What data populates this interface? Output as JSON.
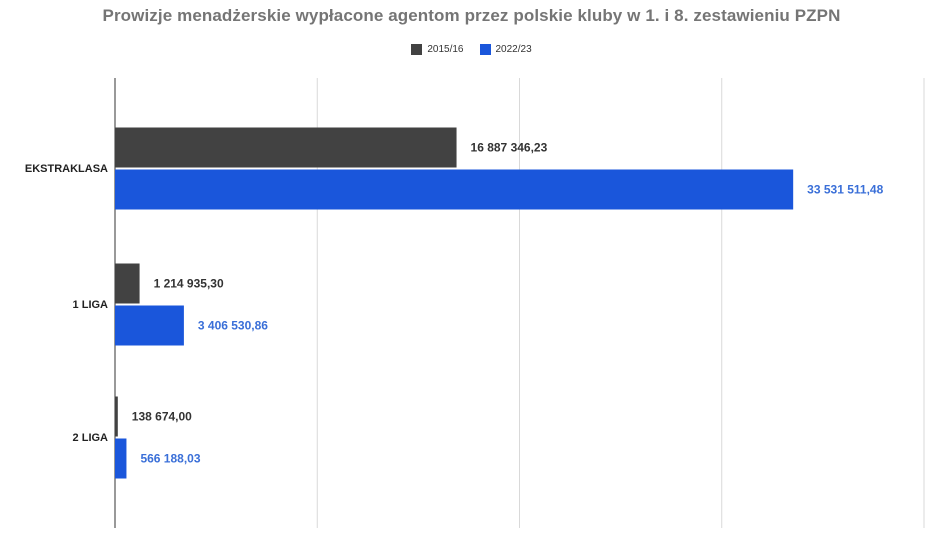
{
  "chart_data": {
    "type": "bar",
    "orientation": "horizontal",
    "title": "Prowizje menadżerskie wypłacone agentom przez polskie kluby w 1. i 8. zestawieniu PZPN",
    "categories": [
      "EKSTRAKLASA",
      "1 LIGA",
      "2 LIGA"
    ],
    "series": [
      {
        "name": "2015/16",
        "color": "#424242",
        "values": [
          16887346.23,
          1214935.3,
          138674.0
        ],
        "labels": [
          "16 887 346,23",
          "1 214 935,30",
          "138 674,00"
        ],
        "label_color": "#333333"
      },
      {
        "name": "2022/23",
        "color": "#1a56db",
        "values": [
          33531511.48,
          3406530.86,
          566188.03
        ],
        "labels": [
          "33 531 511,48",
          "3 406 530,86",
          "566 188,03"
        ],
        "label_color": "#3a6fd8"
      }
    ],
    "xlim": [
      0,
      40000000
    ],
    "grid": true,
    "legend_position": "top"
  }
}
